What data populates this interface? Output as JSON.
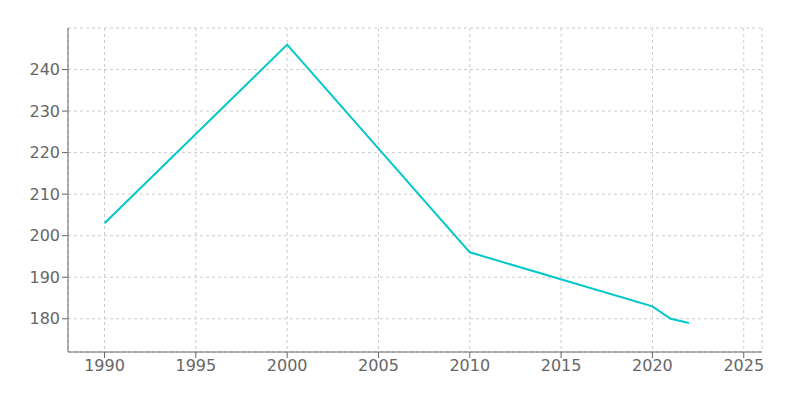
{
  "chart_data": {
    "type": "line",
    "x": [
      1990,
      2000,
      2010,
      2020,
      2021,
      2022
    ],
    "values": [
      203,
      246,
      196,
      183,
      180,
      179
    ],
    "color": "#00C8C8",
    "xlim": [
      1988,
      2026
    ],
    "ylim": [
      172,
      250
    ],
    "xticks": [
      1990,
      1995,
      2000,
      2005,
      2010,
      2015,
      2020,
      2025
    ],
    "yticks": [
      180,
      190,
      200,
      210,
      220,
      230,
      240
    ],
    "grid": true
  }
}
